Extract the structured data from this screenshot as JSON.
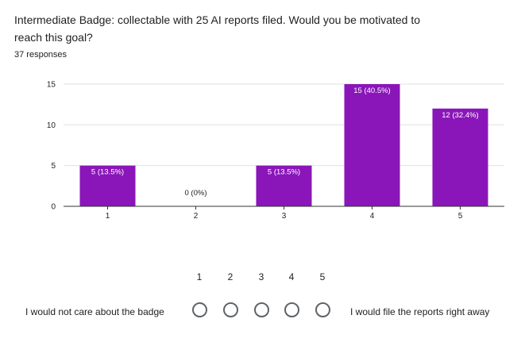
{
  "question": {
    "title": "Intermediate Badge: collectable with 25 AI reports filed. Would you be motivated to reach this goal?",
    "responses": "37 responses"
  },
  "colors": {
    "bar": "#8a16b9",
    "grid": "#e0e0e0",
    "axis": "#333333"
  },
  "chart_data": {
    "type": "bar",
    "categories": [
      "1",
      "2",
      "3",
      "4",
      "5"
    ],
    "values": [
      5,
      0,
      5,
      15,
      12
    ],
    "data_labels": [
      "5 (13.5%)",
      "0 (0%)",
      "5 (13.5%)",
      "15 (40.5%)",
      "12 (32.4%)"
    ],
    "y_ticks": [
      0,
      5,
      10,
      15
    ],
    "ylim": [
      0,
      15
    ],
    "grid": true,
    "legend": "none"
  },
  "scale": {
    "numbers": [
      "1",
      "2",
      "3",
      "4",
      "5"
    ],
    "low_label": "I would not care about the badge",
    "high_label": "I would file the reports right away"
  }
}
